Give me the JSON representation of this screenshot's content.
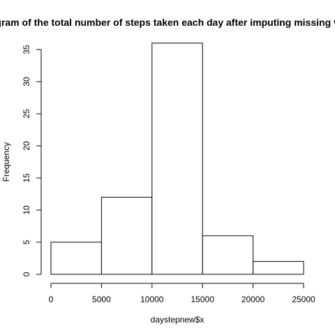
{
  "chart_data": {
    "type": "bar",
    "subtype": "histogram",
    "title": "Histogram of the total number of steps taken each day after imputing missing values",
    "xlabel": "daystepnew$x",
    "ylabel": "Frequency",
    "bins": [
      {
        "from": 0,
        "to": 5000,
        "count": 5
      },
      {
        "from": 5000,
        "to": 10000,
        "count": 12
      },
      {
        "from": 10000,
        "to": 15000,
        "count": 36
      },
      {
        "from": 15000,
        "to": 20000,
        "count": 6
      },
      {
        "from": 20000,
        "to": 25000,
        "count": 2
      }
    ],
    "xlim": [
      0,
      25000
    ],
    "ylim": [
      0,
      35
    ],
    "x_ticks": [
      "0",
      "5000",
      "10000",
      "15000",
      "20000",
      "25000"
    ],
    "y_ticks": [
      "0",
      "5",
      "10",
      "15",
      "20",
      "25",
      "30",
      "35"
    ],
    "grid": false,
    "colors": {
      "bar_fill": "#ffffff",
      "bar_stroke": "#000000",
      "axis": "#000000"
    }
  }
}
